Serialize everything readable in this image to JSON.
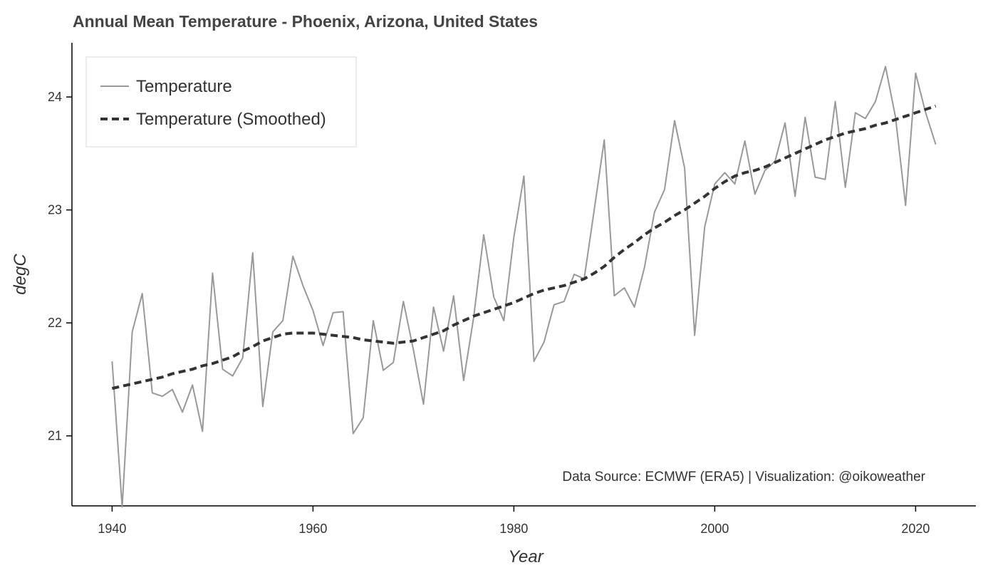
{
  "chart_data": {
    "type": "line",
    "title": "Annual Mean Temperature - Phoenix, Arizona, United States",
    "xlabel": "Year",
    "ylabel": "degC",
    "xlim": [
      1936,
      2026
    ],
    "ylim": [
      20.38,
      24.48
    ],
    "xticks": [
      1940,
      1960,
      1980,
      2000,
      2020
    ],
    "yticks": [
      21,
      22,
      23,
      24
    ],
    "grid": false,
    "legend_position": "top-left",
    "annotation": "Data Source: ECMWF (ERA5) | Visualization: @oikoweather",
    "x": [
      1940,
      1941,
      1942,
      1943,
      1944,
      1945,
      1946,
      1947,
      1948,
      1949,
      1950,
      1951,
      1952,
      1953,
      1954,
      1955,
      1956,
      1957,
      1958,
      1959,
      1960,
      1961,
      1962,
      1963,
      1964,
      1965,
      1966,
      1967,
      1968,
      1969,
      1970,
      1971,
      1972,
      1973,
      1974,
      1975,
      1976,
      1977,
      1978,
      1979,
      1980,
      1981,
      1982,
      1983,
      1984,
      1985,
      1986,
      1987,
      1988,
      1989,
      1990,
      1991,
      1992,
      1993,
      1994,
      1995,
      1996,
      1997,
      1998,
      1999,
      2000,
      2001,
      2002,
      2003,
      2004,
      2005,
      2006,
      2007,
      2008,
      2009,
      2010,
      2011,
      2012,
      2013,
      2014,
      2015,
      2016,
      2017,
      2018,
      2019,
      2020,
      2021,
      2022
    ],
    "series": [
      {
        "name": "Temperature",
        "color": "#999999",
        "style": "solid",
        "values": [
          21.66,
          20.37,
          21.92,
          22.26,
          21.38,
          21.35,
          21.41,
          21.21,
          21.45,
          21.04,
          22.44,
          21.59,
          21.53,
          21.69,
          22.62,
          21.26,
          21.92,
          22.02,
          22.59,
          22.33,
          22.11,
          21.8,
          22.09,
          22.1,
          21.02,
          21.16,
          22.02,
          21.58,
          21.65,
          22.19,
          21.76,
          21.28,
          22.14,
          21.75,
          22.24,
          21.49,
          22.05,
          22.78,
          22.23,
          22.02,
          22.76,
          23.3,
          21.66,
          21.83,
          22.16,
          22.19,
          22.43,
          22.39,
          23.0,
          23.62,
          22.24,
          22.31,
          22.14,
          22.49,
          22.98,
          23.18,
          23.79,
          23.37,
          21.89,
          22.85,
          23.23,
          23.33,
          23.23,
          23.61,
          23.14,
          23.35,
          23.43,
          23.77,
          23.12,
          23.82,
          23.29,
          23.27,
          23.96,
          23.2,
          23.86,
          23.81,
          23.96,
          24.27,
          23.82,
          23.04,
          24.21,
          23.86,
          23.58
        ]
      },
      {
        "name": "Temperature (Smoothed)",
        "color": "#333333",
        "style": "dashed",
        "values": [
          21.42,
          21.44,
          21.46,
          21.48,
          21.5,
          21.52,
          21.55,
          21.57,
          21.59,
          21.62,
          21.64,
          21.67,
          21.7,
          21.75,
          21.79,
          21.84,
          21.87,
          21.9,
          21.91,
          21.91,
          21.91,
          21.9,
          21.89,
          21.88,
          21.87,
          21.85,
          21.84,
          21.83,
          21.82,
          21.83,
          21.84,
          21.87,
          21.9,
          21.93,
          21.98,
          22.02,
          22.06,
          22.09,
          22.12,
          22.15,
          22.18,
          22.22,
          22.26,
          22.29,
          22.31,
          22.33,
          22.36,
          22.39,
          22.44,
          22.5,
          22.58,
          22.65,
          22.71,
          22.78,
          22.84,
          22.89,
          22.95,
          23.0,
          23.06,
          23.12,
          23.19,
          23.25,
          23.3,
          23.33,
          23.35,
          23.38,
          23.42,
          23.46,
          23.5,
          23.54,
          23.58,
          23.62,
          23.65,
          23.68,
          23.7,
          23.72,
          23.75,
          23.77,
          23.8,
          23.83,
          23.86,
          23.89,
          23.92
        ]
      }
    ]
  }
}
